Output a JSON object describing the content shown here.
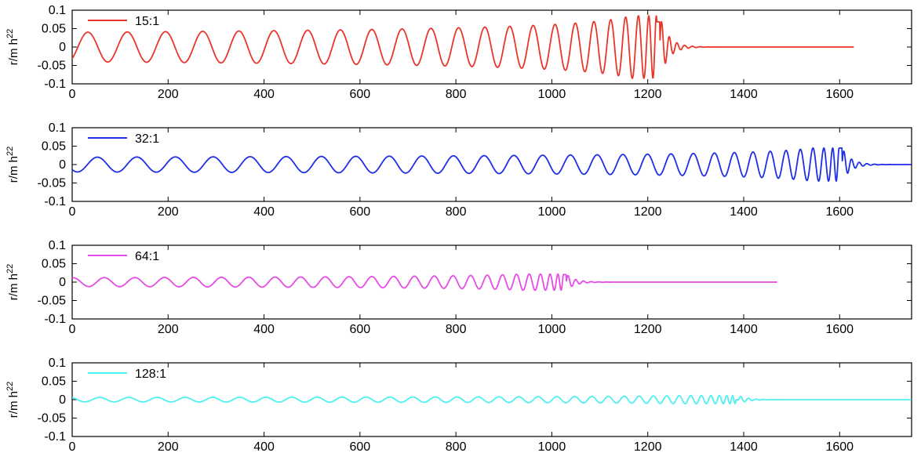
{
  "chart_data": [
    {
      "type": "line",
      "ylabel": "r/m h",
      "ylabel_sup": "22",
      "xlim": [
        0,
        1750
      ],
      "ylim": [
        -0.1,
        0.1
      ],
      "xticks": [
        "0",
        "200",
        "400",
        "600",
        "800",
        "1000",
        "1200",
        "1400",
        "1600"
      ],
      "yticks": [
        "0.1",
        "0.05",
        "0",
        "-0.05",
        "-0.1"
      ],
      "legend": "top-left",
      "series": [
        {
          "name": "15:1",
          "color": "#e8362b",
          "amplitude": 0.04,
          "peak_amplitude": 0.085,
          "t_start": 0,
          "t_merger": 1225,
          "t_end": 1630,
          "base_period": 84
        }
      ]
    },
    {
      "type": "line",
      "ylabel": "r/m h",
      "ylabel_sup": "22",
      "xlim": [
        0,
        1750
      ],
      "ylim": [
        -0.1,
        0.1
      ],
      "xticks": [
        "0",
        "200",
        "400",
        "600",
        "800",
        "1000",
        "1200",
        "1400",
        "1600"
      ],
      "yticks": [
        "0.1",
        "0.05",
        "0",
        "-0.05",
        "-0.1"
      ],
      "legend": "top-left",
      "series": [
        {
          "name": "32:1",
          "color": "#1f2fe6",
          "amplitude": 0.02,
          "peak_amplitude": 0.045,
          "t_start": 0,
          "t_merger": 1605,
          "t_end": 1750,
          "base_period": 84
        }
      ]
    },
    {
      "type": "line",
      "ylabel": "r/m h",
      "ylabel_sup": "22",
      "xlim": [
        0,
        1750
      ],
      "ylim": [
        -0.1,
        0.1
      ],
      "xticks": [
        "0",
        "200",
        "400",
        "600",
        "800",
        "1000",
        "1200",
        "1400",
        "1600"
      ],
      "yticks": [
        "0.1",
        "0.05",
        "0",
        "-0.05",
        "-0.1"
      ],
      "legend": "top-left",
      "series": [
        {
          "name": "64:1",
          "color": "#e64be6",
          "amplitude": 0.012,
          "peak_amplitude": 0.022,
          "t_start": 0,
          "t_merger": 1030,
          "t_end": 1470,
          "base_period": 66
        }
      ]
    },
    {
      "type": "line",
      "ylabel": "r/m h",
      "ylabel_sup": "22",
      "xlim": [
        0,
        1750
      ],
      "ylim": [
        -0.1,
        0.1
      ],
      "xticks": [
        "0",
        "200",
        "400",
        "600",
        "800",
        "1000",
        "1200",
        "1400",
        "1600"
      ],
      "yticks": [
        "0.1",
        "0.05",
        "0",
        "-0.05",
        "-0.1"
      ],
      "legend": "top-left",
      "series": [
        {
          "name": "128:1",
          "color": "#4ef0f0",
          "amplitude": 0.006,
          "peak_amplitude": 0.011,
          "t_start": 0,
          "t_merger": 1390,
          "t_end": 1750,
          "base_period": 62
        }
      ]
    }
  ]
}
